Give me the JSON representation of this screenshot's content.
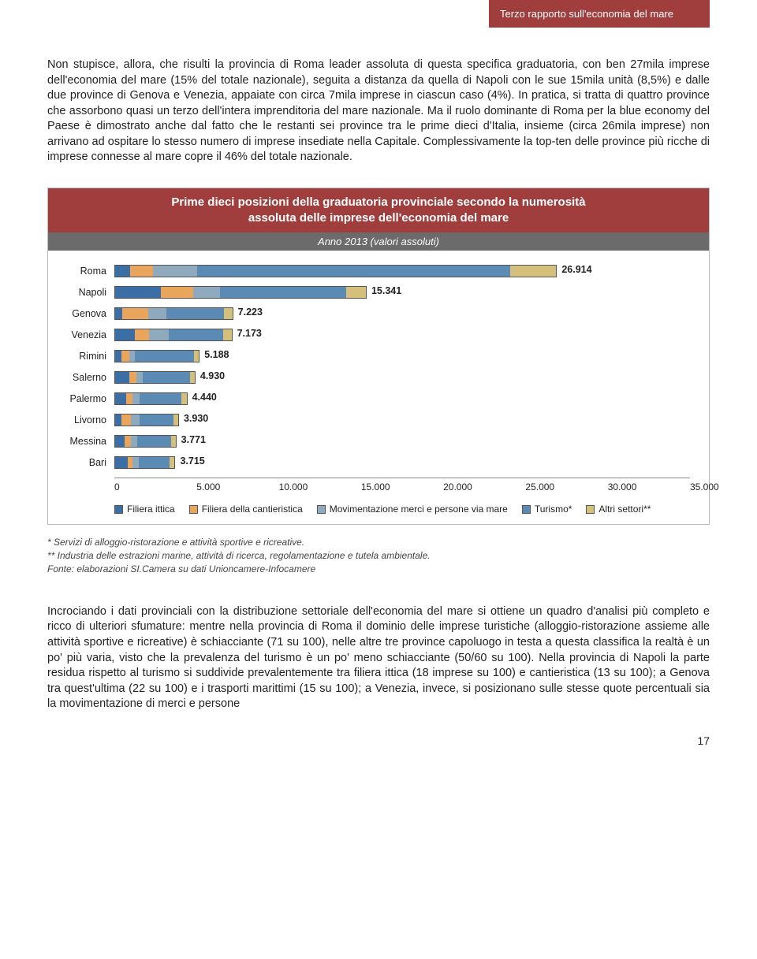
{
  "header": {
    "title": "Terzo rapporto sull'economia del mare"
  },
  "para1": "Non stupisce, allora, che risulti la provincia di Roma leader assoluta di questa specifica graduatoria, con ben 27mila imprese dell'economia del mare (15% del totale nazionale), seguita a distanza da quella di Napoli con le sue 15mila unità (8,5%) e dalle due province di Genova e Venezia, appaiate con circa 7mila imprese in ciascun caso (4%). In pratica, si tratta di quattro province che assorbono quasi un terzo dell'intera imprenditoria del mare nazionale. Ma il ruolo dominante di Roma per la blue economy del Paese è dimostrato anche dal fatto che le restanti sei province tra le prime dieci d'Italia, insieme (circa 26mila imprese) non arrivano ad ospitare lo stesso numero di imprese insediate nella Capitale. Complessivamente la top-ten delle province più ricche di imprese connesse al mare copre il 46% del totale nazionale.",
  "chart": {
    "title_line1": "Prime dieci posizioni della graduatoria provinciale secondo la numerosità",
    "title_line2": "assoluta delle imprese dell'economia del mare",
    "subtitle": "Anno 2013 (valori assoluti)",
    "xmax": 35000,
    "xticks": [
      "0",
      "5.000",
      "10.000",
      "15.000",
      "20.000",
      "25.000",
      "30.000",
      "35.000"
    ],
    "series_colors": {
      "ittica": "#3b6ea5",
      "cantieristica": "#e8a55b",
      "movimentazione": "#8fa9bd",
      "turismo": "#5b8bb5",
      "altri": "#d4c07a"
    },
    "rows": [
      {
        "label": "Roma",
        "total": 26914,
        "display": "26.914",
        "segs": [
          900,
          1400,
          2700,
          19114,
          2800
        ]
      },
      {
        "label": "Napoli",
        "total": 15341,
        "display": "15.341",
        "segs": [
          2800,
          2000,
          1600,
          7741,
          1200
        ]
      },
      {
        "label": "Genova",
        "total": 7223,
        "display": "7.223",
        "segs": [
          450,
          1600,
          1100,
          3573,
          500
        ]
      },
      {
        "label": "Venezia",
        "total": 7173,
        "display": "7.173",
        "segs": [
          1200,
          900,
          1200,
          3373,
          500
        ]
      },
      {
        "label": "Rimini",
        "total": 5188,
        "display": "5.188",
        "segs": [
          400,
          500,
          300,
          3688,
          300
        ]
      },
      {
        "label": "Salerno",
        "total": 4930,
        "display": "4.930",
        "segs": [
          900,
          400,
          400,
          2930,
          300
        ]
      },
      {
        "label": "Palermo",
        "total": 4440,
        "display": "4.440",
        "segs": [
          700,
          400,
          400,
          2640,
          300
        ]
      },
      {
        "label": "Livorno",
        "total": 3930,
        "display": "3.930",
        "segs": [
          400,
          600,
          500,
          2130,
          300
        ]
      },
      {
        "label": "Messina",
        "total": 3771,
        "display": "3.771",
        "segs": [
          600,
          400,
          400,
          2071,
          300
        ]
      },
      {
        "label": "Bari",
        "total": 3715,
        "display": "3.715",
        "segs": [
          800,
          300,
          400,
          1915,
          300
        ]
      }
    ],
    "legend": [
      {
        "label": "Filiera ittica",
        "color": "#3b6ea5"
      },
      {
        "label": "Filiera della cantieristica",
        "color": "#e8a55b"
      },
      {
        "label": "Movimentazione merci e persone via mare",
        "color": "#8fa9bd"
      },
      {
        "label": "Turismo*",
        "color": "#5b8bb5"
      },
      {
        "label": "Altri settori**",
        "color": "#d4c07a"
      }
    ]
  },
  "footnotes": {
    "n1": "* Servizi di alloggio-ristorazione e attività sportive e ricreative.",
    "n2": "** Industria delle estrazioni marine, attività di ricerca, regolamentazione e tutela ambientale.",
    "n3": "Fonte: elaborazioni SI.Camera su dati Unioncamere-Infocamere"
  },
  "para2": "Incrociando i dati provinciali con la distribuzione settoriale dell'economia del mare si ottiene un quadro d'analisi più completo e ricco di ulteriori sfumature: mentre nella provincia di Roma il dominio delle imprese turistiche (alloggio-ristorazione assieme alle attività sportive e ricreative) è schiacciante (71 su 100), nelle altre tre province capoluogo in testa a questa classifica la realtà è un po' più varia, visto che la prevalenza del turismo è un po' meno schiacciante (50/60 su 100). Nella provincia di Napoli la parte residua rispetto al turismo si suddivide prevalentemente tra filiera ittica (18 imprese su 100) e cantieristica (13 su 100); a Genova tra quest'ultima (22 su 100) e i trasporti marittimi (15 su 100); a Venezia, invece, si posizionano sulle stesse quote percentuali sia la movimentazione di merci e persone",
  "page_number": "17"
}
